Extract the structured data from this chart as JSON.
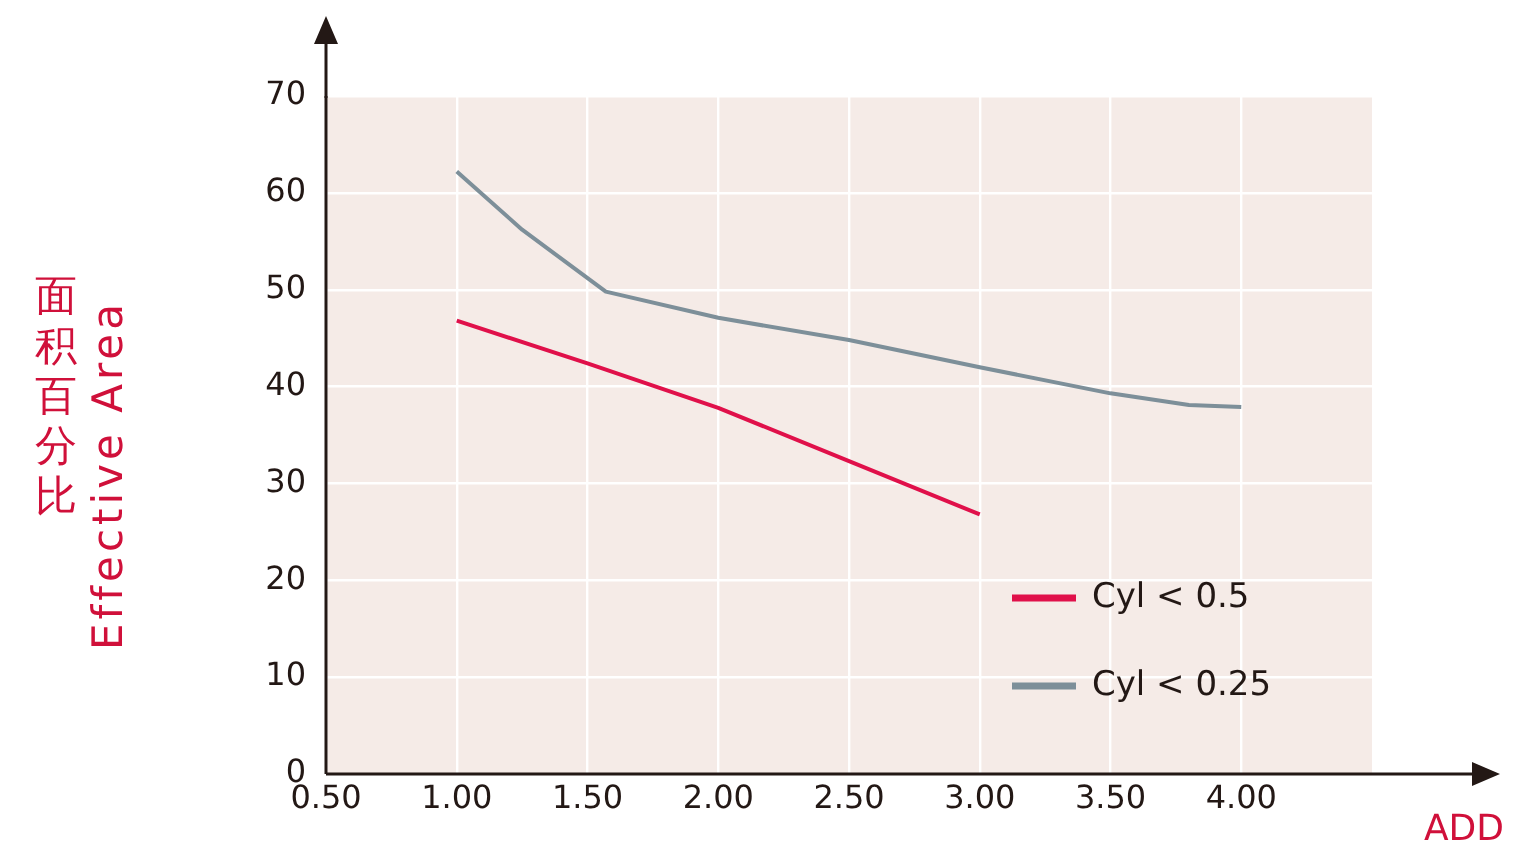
{
  "chart_data": {
    "type": "line",
    "xlabel": "ADD",
    "ylabel": "面积百分比\nEffective Area",
    "xlim": [
      0.5,
      4.5
    ],
    "ylim": [
      0,
      70
    ],
    "xticks": [
      {
        "value": 0.5,
        "label": "0.50"
      },
      {
        "value": 1,
        "label": "1.00"
      },
      {
        "value": 1.5,
        "label": "1.50"
      },
      {
        "value": 2,
        "label": "2.00"
      },
      {
        "value": 2.5,
        "label": "2.50"
      },
      {
        "value": 3,
        "label": "3.00"
      },
      {
        "value": 3.5,
        "label": "3.50"
      },
      {
        "value": 4,
        "label": "4.00"
      }
    ],
    "yticks": [
      0,
      10,
      20,
      30,
      40,
      50,
      60,
      70
    ],
    "grid": true,
    "legend": "bottom right",
    "marker": "none",
    "line_style": "solid",
    "series": [
      {
        "name": "Cyl < 0.5",
        "color": "#e0104a",
        "x": [
          1,
          1.5,
          2,
          2.5,
          3
        ],
        "values": [
          46.8,
          42.4,
          37.8,
          32.3,
          26.8
        ]
      },
      {
        "name": "Cyl < 0.25",
        "color": "#7d8f99",
        "x": [
          1,
          1.25,
          1.57,
          2,
          2.5,
          3,
          3.5,
          3.8,
          4
        ],
        "values": [
          62.2,
          56.2,
          49.8,
          47.1,
          44.8,
          42,
          39.3,
          38.1,
          37.9
        ]
      }
    ]
  }
}
